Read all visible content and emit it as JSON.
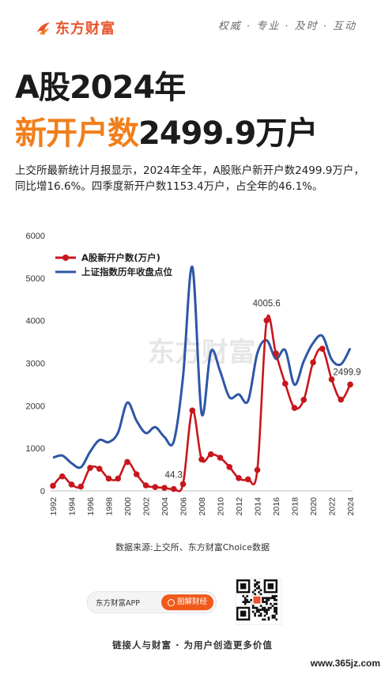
{
  "brand": {
    "name": "东方财富",
    "slogan": "权威 · 专业 · 及时 · 互动",
    "accent": "#e8542b"
  },
  "headline": {
    "line1": "A股2024年",
    "line2_highlight": "新开户数",
    "line2_value": "2499.9万户"
  },
  "summary": "上交所最新统计月报显示，2024年全年，A股账户新开户数2499.9万户，同比增16.6%。四季度新开户数1153.4万户，占全年的46.1%。",
  "chart_data": {
    "type": "line",
    "x": [
      1992,
      1993,
      1994,
      1995,
      1996,
      1997,
      1998,
      1999,
      2000,
      2001,
      2002,
      2003,
      2004,
      2005,
      2006,
      2007,
      2008,
      2009,
      2010,
      2011,
      2012,
      2013,
      2014,
      2015,
      2016,
      2017,
      2018,
      2019,
      2020,
      2021,
      2022,
      2023,
      2024
    ],
    "x_tick_labels": [
      "1992",
      "1994",
      "1996",
      "1998",
      "2000",
      "2002",
      "2004",
      "2006",
      "2008",
      "2010",
      "2012",
      "2014",
      "2016",
      "2018",
      "2020",
      "2022",
      "2024"
    ],
    "y_tick_labels": [
      "0",
      "1000",
      "2000",
      "3000",
      "4000",
      "5000",
      "6000"
    ],
    "ylim": [
      0,
      6000
    ],
    "grid": false,
    "legend_position": "top-left",
    "series": [
      {
        "name": "A股新开户数(万户)",
        "color": "#c8161d",
        "markers": true,
        "values": [
          120,
          340,
          150,
          100,
          540,
          520,
          290,
          290,
          680,
          390,
          130,
          90,
          70,
          44.3,
          160,
          1890,
          740,
          860,
          780,
          560,
          300,
          270,
          490,
          4005.6,
          3230,
          2520,
          1950,
          2140,
          3020,
          3340,
          2620,
          2144,
          2499.9
        ]
      },
      {
        "name": "上证指数历年收盘点位",
        "color": "#2d56a6",
        "markers": false,
        "values": [
          780,
          830,
          650,
          555,
          920,
          1194,
          1146,
          1367,
          2073,
          1646,
          1358,
          1497,
          1266,
          1161,
          2675,
          5262,
          1821,
          3277,
          2808,
          2199,
          2269,
          2116,
          3235,
          3539,
          3104,
          3307,
          2494,
          3050,
          3473,
          3640,
          3089,
          2975,
          3352
        ]
      }
    ],
    "annotations": [
      {
        "x": 2005,
        "text": "44.3"
      },
      {
        "x": 2015,
        "text": "4005.6"
      },
      {
        "x": 2024,
        "text": "2499.9"
      }
    ],
    "watermark": "东方财富"
  },
  "source": "数据来源:上交所、东方财富Choice数据",
  "footer": {
    "app_label": "东方财富APP",
    "button_label": "图解财经",
    "tagline": "链接人与财富 · 为用户创造更多价值",
    "site": "www.365jz.com"
  }
}
